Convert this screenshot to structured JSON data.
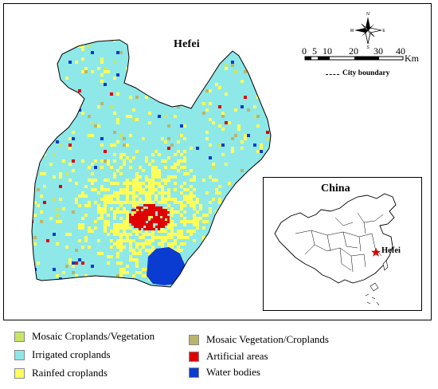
{
  "map": {
    "title": "Hefei",
    "scale": {
      "ticks": [
        "0",
        "5",
        "10",
        "20",
        "30",
        "40"
      ],
      "unit": "Km"
    },
    "boundary_label": "City boundary",
    "compass_letters": [
      "N",
      "E",
      "S",
      "W"
    ]
  },
  "inset": {
    "title": "China",
    "city_label": "Hefei"
  },
  "legend": {
    "items": [
      {
        "label": "Mosaic Croplands/Vegetation",
        "color": "#c8e664"
      },
      {
        "label": "Irrigated croplands",
        "color": "#8ee8e8"
      },
      {
        "label": "Rainfed croplands",
        "color": "#ffff5a"
      },
      {
        "label": "Mosaic Vegetation/Croplands",
        "color": "#b8b46c"
      },
      {
        "label": "Artificial areas",
        "color": "#e00000"
      },
      {
        "label": "Water bodies",
        "color": "#0a3cd2"
      }
    ]
  },
  "colors": {
    "irrigated": "#8ee8e8",
    "rainfed": "#ffff5a",
    "artificial": "#e00000",
    "water": "#0a3cd2",
    "mosaic_crop": "#c8e664",
    "mosaic_veg": "#b8b46c",
    "city_marker": "#e00000"
  }
}
